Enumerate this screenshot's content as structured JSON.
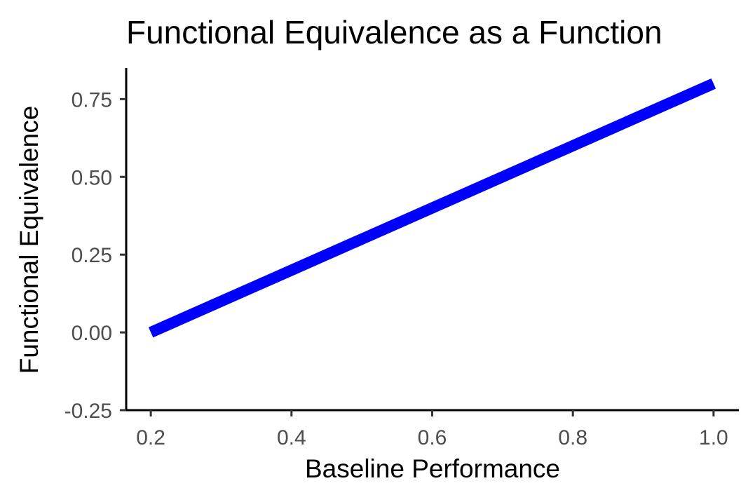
{
  "chart_data": {
    "type": "line",
    "title": "Functional Equivalence as a Function",
    "xlabel": "Baseline Performance",
    "ylabel": "Functional Equivalence",
    "x_ticks": [
      "0.2",
      "0.4",
      "0.6",
      "0.8",
      "1.0"
    ],
    "y_ticks": [
      "-0.25",
      "0.00",
      "0.25",
      "0.50",
      "0.75"
    ],
    "xlim": [
      0.165,
      1.035
    ],
    "ylim": [
      -0.25,
      0.85
    ],
    "grid": false,
    "series": [
      {
        "color": "#0000ff",
        "x": [
          0.2,
          1.0
        ],
        "y": [
          0.0,
          0.8
        ]
      }
    ]
  }
}
